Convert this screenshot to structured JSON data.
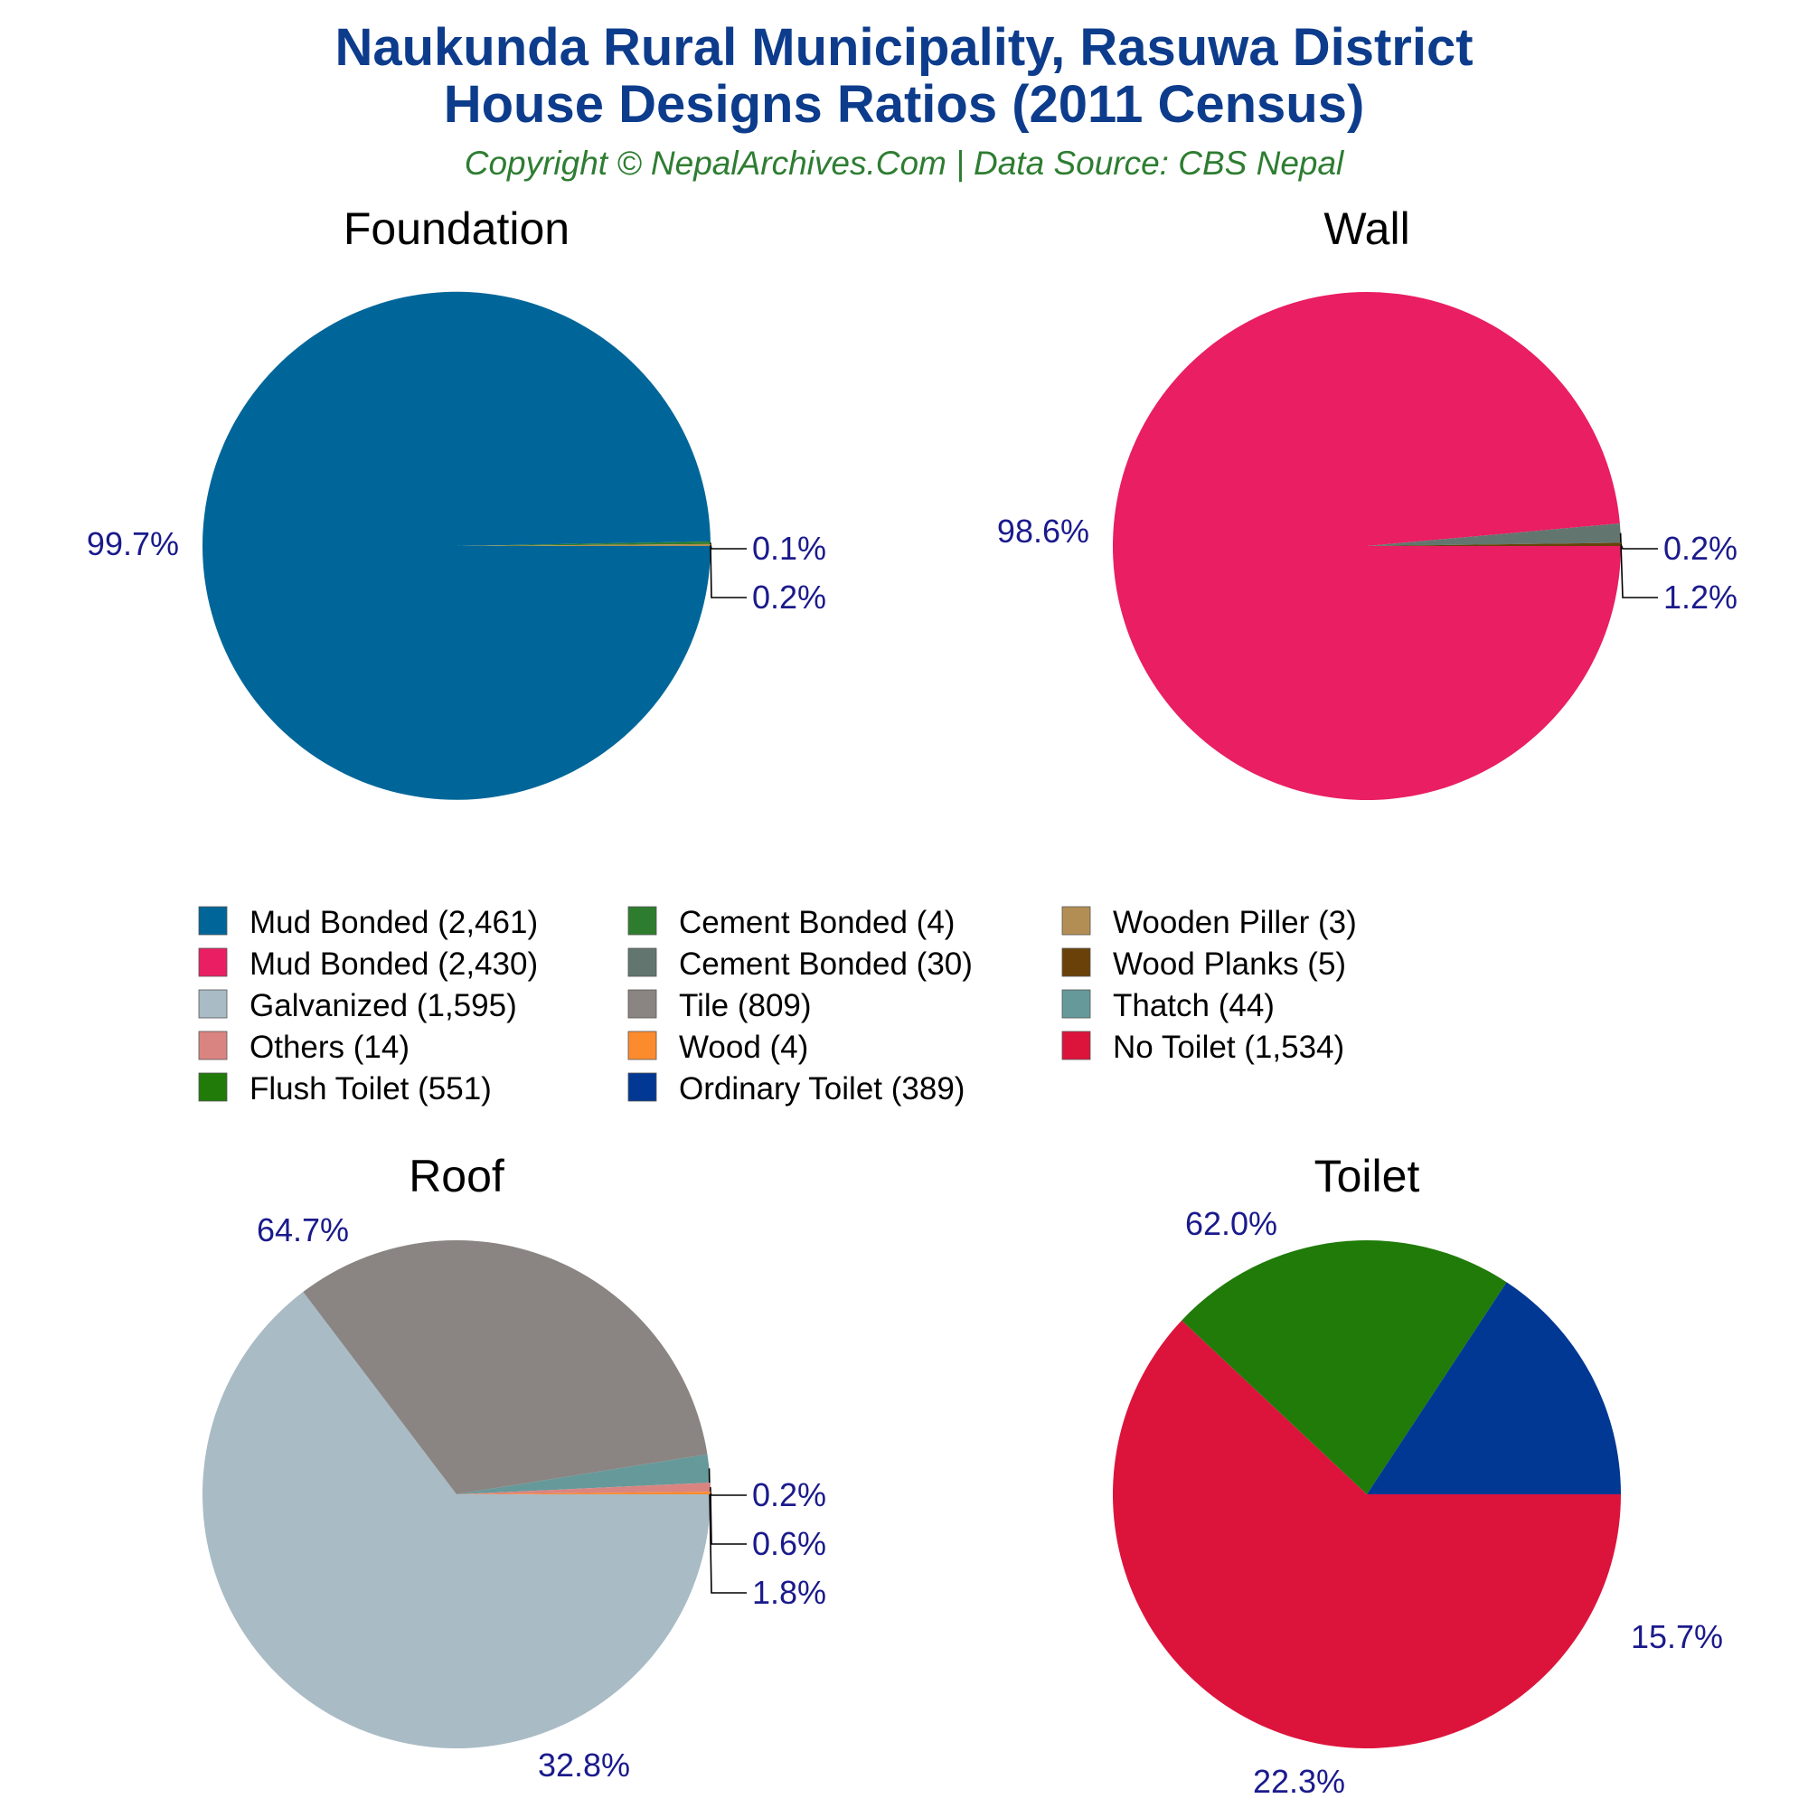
{
  "title_line1": "Naukunda Rural Municipality, Rasuwa District",
  "title_line2": "House Designs Ratios (2011 Census)",
  "subtitle": "Copyright © NepalArchives.Com | Data Source: CBS Nepal",
  "legend": [
    {
      "label": "Mud Bonded (2,461)",
      "color": "#006699"
    },
    {
      "label": "Mud Bonded (2,430)",
      "color": "#e91e63"
    },
    {
      "label": "Galvanized (1,595)",
      "color": "#a9bbc5"
    },
    {
      "label": "Others (14)",
      "color": "#da8481"
    },
    {
      "label": "Flush Toilet (551)",
      "color": "#207b09"
    },
    {
      "label": "Cement Bonded (4)",
      "color": "#2e7d2e"
    },
    {
      "label": "Cement Bonded (30)",
      "color": "#62766f"
    },
    {
      "label": "Tile (809)",
      "color": "#8a8582"
    },
    {
      "label": "Wood (4)",
      "color": "#fc8b2e"
    },
    {
      "label": "Ordinary Toilet (389)",
      "color": "#003893"
    },
    {
      "label": "Wooden Piller (3)",
      "color": "#b38e54"
    },
    {
      "label": "Wood Planks (5)",
      "color": "#6a4109"
    },
    {
      "label": "Thatch (44)",
      "color": "#66999a"
    },
    {
      "label": "No Toilet (1,534)",
      "color": "#dc143c"
    }
  ],
  "chart_data": [
    {
      "type": "pie",
      "title": "Foundation",
      "slices": [
        {
          "label": "Mud Bonded",
          "value": 2461,
          "color": "#006699",
          "pct_label": "99.7%"
        },
        {
          "label": "Cement Bonded",
          "value": 4,
          "color": "#2e7d2e",
          "pct_label": "0.2%"
        },
        {
          "label": "Wooden Piller",
          "value": 3,
          "color": "#b38e54",
          "pct_label": "0.1%"
        }
      ]
    },
    {
      "type": "pie",
      "title": "Wall",
      "slices": [
        {
          "label": "Mud Bonded",
          "value": 2430,
          "color": "#e91e63",
          "pct_label": "98.6%"
        },
        {
          "label": "Cement Bonded",
          "value": 30,
          "color": "#62766f",
          "pct_label": "1.2%"
        },
        {
          "label": "Wood Planks",
          "value": 5,
          "color": "#6a4109",
          "pct_label": "0.2%"
        }
      ]
    },
    {
      "type": "pie",
      "title": "Roof",
      "slices": [
        {
          "label": "Galvanized",
          "value": 1595,
          "color": "#a9bbc5",
          "pct_label": "64.7%"
        },
        {
          "label": "Tile",
          "value": 809,
          "color": "#8a8582",
          "pct_label": "32.8%"
        },
        {
          "label": "Thatch",
          "value": 44,
          "color": "#66999a",
          "pct_label": "1.8%"
        },
        {
          "label": "Others",
          "value": 14,
          "color": "#da8481",
          "pct_label": "0.6%"
        },
        {
          "label": "Wood",
          "value": 4,
          "color": "#fc8b2e",
          "pct_label": "0.2%"
        }
      ]
    },
    {
      "type": "pie",
      "title": "Toilet",
      "slices": [
        {
          "label": "No Toilet",
          "value": 1534,
          "color": "#dc143c",
          "pct_label": "62.0%"
        },
        {
          "label": "Flush Toilet",
          "value": 551,
          "color": "#207b09",
          "pct_label": "22.3%"
        },
        {
          "label": "Ordinary Toilet",
          "value": 389,
          "color": "#003893",
          "pct_label": "15.7%"
        }
      ]
    }
  ]
}
